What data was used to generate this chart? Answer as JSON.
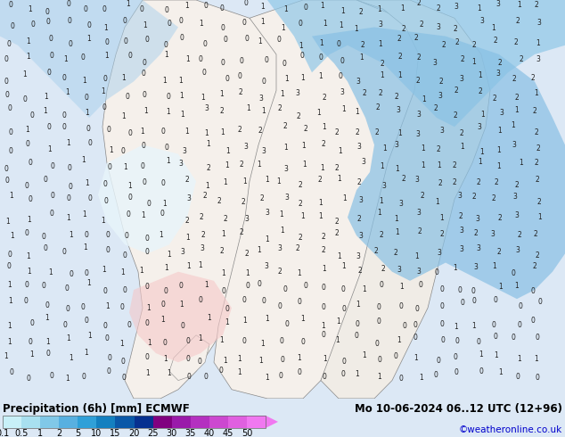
{
  "title_left": "Precipitation (6h) [mm] ECMWF",
  "title_right": "Mo 10-06-2024 06..12 UTC (12+96)",
  "credit": "©weatheronline.co.uk",
  "colorbar_levels": [
    "0.1",
    "0.5",
    "1",
    "2",
    "5",
    "10",
    "15",
    "20",
    "25",
    "30",
    "35",
    "40",
    "45",
    "50"
  ],
  "colorbar_colors": [
    "#c8f0f0",
    "#a0dce6",
    "#78c8dc",
    "#50b4d2",
    "#28a0c8",
    "#1478b4",
    "#0a50a0",
    "#06348c",
    "#8b1a8b",
    "#a01eb4",
    "#b432c8",
    "#c846d2",
    "#dc5adc",
    "#f06ee6"
  ],
  "map_bg": "#dce8f5",
  "land_color": "#f5f0eb",
  "sea_color": "#cce0f0",
  "precip_light": "#b8d8f0",
  "precip_medium": "#90c0e8",
  "precip_dark": "#6090d0",
  "bottom_bg": "#ffffff",
  "label_color": "#000000",
  "credit_color": "#0000cc",
  "font_size_title": 8.5,
  "font_size_labels": 7,
  "font_size_credit": 7.5,
  "font_size_numbers": 5.5
}
